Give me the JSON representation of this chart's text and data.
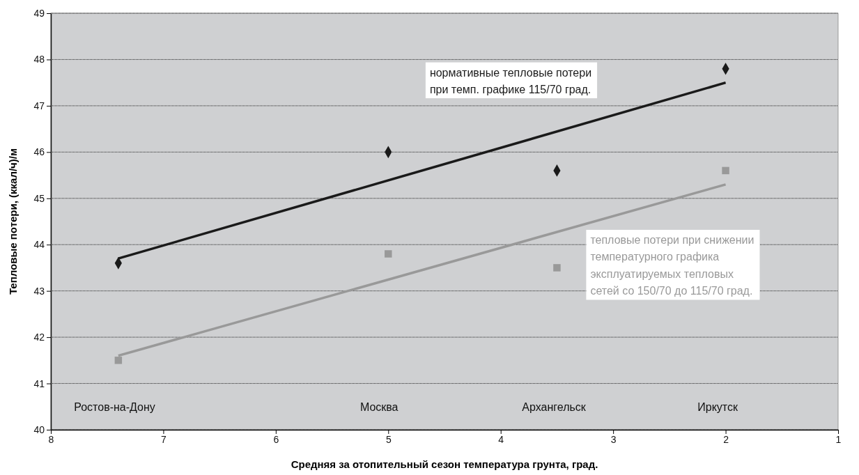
{
  "chart_data": {
    "type": "scatter",
    "xlabel": "Средняя за отопительный сезон температура грунта, град.",
    "ylabel": "Тепловые потери, (ккал/ч)/м",
    "xlim": [
      8,
      1
    ],
    "xticks": [
      8,
      7,
      6,
      5,
      4,
      3,
      2,
      1
    ],
    "ylim": [
      40,
      49
    ],
    "yticks": [
      40,
      41,
      42,
      43,
      44,
      45,
      46,
      47,
      48,
      49
    ],
    "grid": "y",
    "legend": false,
    "series": [
      {
        "color": "#1a1a1a",
        "marker": "diamond",
        "x": [
          7.4,
          5,
          3.5,
          2
        ],
        "values": [
          43.6,
          46.0,
          45.6,
          47.8
        ]
      },
      {
        "color": "#999999",
        "marker": "square",
        "x": [
          7.4,
          5,
          3.5,
          2
        ],
        "values": [
          41.5,
          43.8,
          43.5,
          45.6
        ]
      },
      {
        "type": "line",
        "name": "нормативные тепловые потери\nпри темп. графике 115/70 град.",
        "color": "#1a1a1a",
        "line_style": "solid",
        "x": [
          7.4,
          2
        ],
        "values": [
          43.7,
          47.5
        ]
      },
      {
        "type": "line",
        "name": "тепловые потери при снижении\nтемпературного графика\nэксплуатируемых тепловых\nсетей со 150/70 до 115/70 град.",
        "color": "#999999",
        "line_style": "solid",
        "x": [
          7.4,
          2
        ],
        "values": [
          41.6,
          45.3
        ]
      }
    ],
    "annotations": [
      "Ростов-на-Дону",
      "Москва",
      "Архангельск",
      "Иркутск"
    ]
  }
}
